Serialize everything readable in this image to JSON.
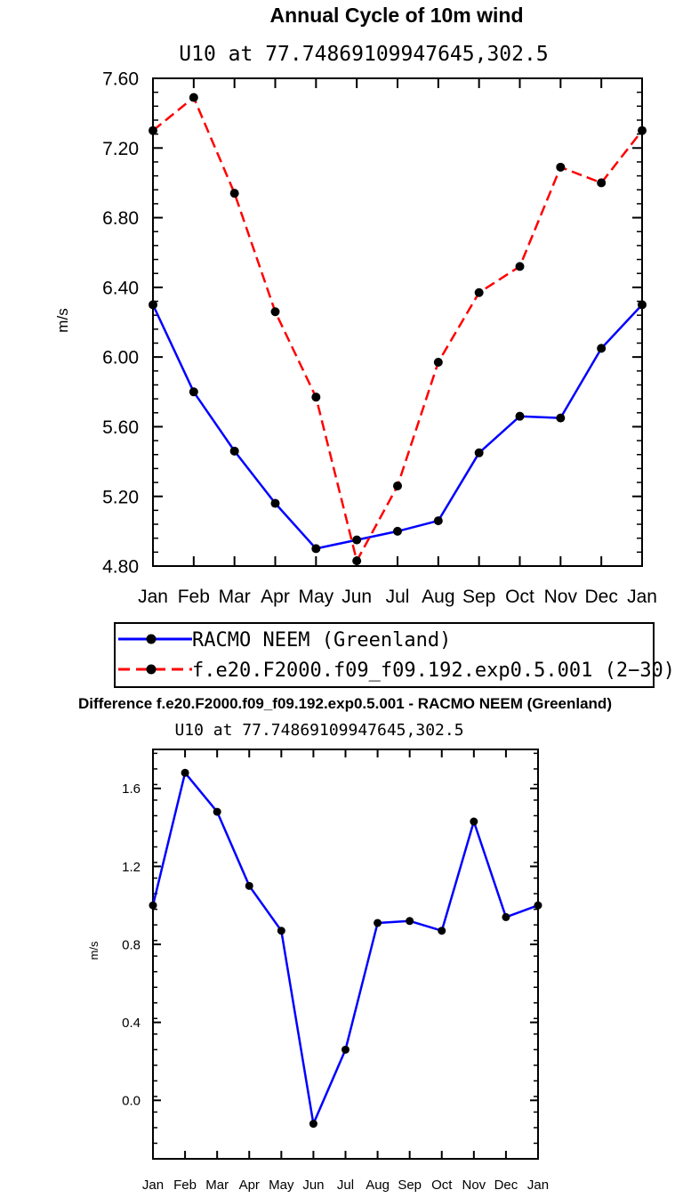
{
  "chart_data": [
    {
      "type": "line",
      "title": "Annual Cycle of 10m wind",
      "subtitle": "U10 at 77.74869109947645,302.5",
      "xlabel": "",
      "ylabel": "m/s",
      "categories": [
        "Jan",
        "Feb",
        "Mar",
        "Apr",
        "May",
        "Jun",
        "Jul",
        "Aug",
        "Sep",
        "Oct",
        "Nov",
        "Dec",
        "Jan"
      ],
      "ylim": [
        4.8,
        7.6
      ],
      "yticks": [
        "4.80",
        "5.20",
        "5.60",
        "6.00",
        "6.40",
        "6.80",
        "7.20",
        "7.60"
      ],
      "grid": false,
      "legend_position": "bottom",
      "series": [
        {
          "name": "RACMO NEEM (Greenland)",
          "color": "#0000ff",
          "dash": "solid",
          "values": [
            6.3,
            5.8,
            5.46,
            5.16,
            4.9,
            4.95,
            5.0,
            5.06,
            5.45,
            5.66,
            5.65,
            6.05,
            6.3
          ]
        },
        {
          "name": "f.e20.F2000.f09_f09.192.exp0.5.001 (2−30)",
          "color": "#ff0000",
          "dash": "dashed",
          "values": [
            7.3,
            7.49,
            6.94,
            6.26,
            5.77,
            4.83,
            5.26,
            5.97,
            6.37,
            6.52,
            7.09,
            7.0,
            7.3
          ]
        }
      ]
    },
    {
      "type": "line",
      "title": "Difference f.e20.F2000.f09_f09.192.exp0.5.001 - RACMO NEEM (Greenland)",
      "subtitle": "U10 at 77.74869109947645,302.5",
      "xlabel": "",
      "ylabel": "m/s",
      "categories": [
        "Jan",
        "Feb",
        "Mar",
        "Apr",
        "May",
        "Jun",
        "Jul",
        "Aug",
        "Sep",
        "Oct",
        "Nov",
        "Dec",
        "Jan"
      ],
      "ylim": [
        -0.3,
        1.8
      ],
      "yticks": [
        "0.0",
        "0.4",
        "0.8",
        "1.2",
        "1.6"
      ],
      "grid": false,
      "series": [
        {
          "color": "#0000ff",
          "dash": "solid",
          "values": [
            1.0,
            1.68,
            1.48,
            1.1,
            0.87,
            -0.12,
            0.26,
            0.91,
            0.92,
            0.87,
            1.43,
            0.94,
            1.0
          ]
        }
      ]
    }
  ]
}
